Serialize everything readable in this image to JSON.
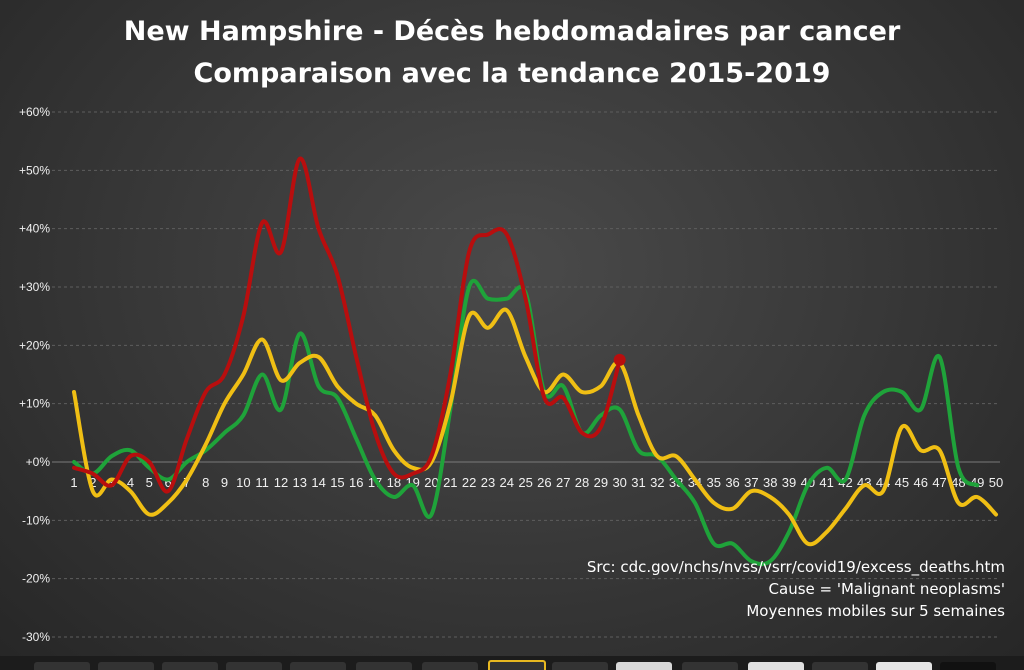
{
  "chart_data": {
    "type": "line",
    "title": "New Hampshire - Décès hebdomadaires par cancer",
    "subtitle": "Comparaison avec la tendance 2015-2019",
    "xlabel": "",
    "ylabel": "",
    "ylim": [
      -30,
      60
    ],
    "ytick_values": [
      -30,
      -20,
      -10,
      0,
      10,
      20,
      30,
      40,
      50,
      60
    ],
    "ytick_labels": [
      "-30%",
      "-20%",
      "-10%",
      "+0%",
      "+10%",
      "+20%",
      "+30%",
      "+40%",
      "+50%",
      "+60%"
    ],
    "x": [
      1,
      2,
      3,
      4,
      5,
      6,
      7,
      8,
      9,
      10,
      11,
      12,
      13,
      14,
      15,
      16,
      17,
      18,
      19,
      20,
      21,
      22,
      23,
      24,
      25,
      26,
      27,
      28,
      29,
      30,
      31,
      32,
      33,
      34,
      35,
      36,
      37,
      38,
      39,
      40,
      41,
      42,
      43,
      44,
      45,
      46,
      47,
      48,
      49,
      50
    ],
    "xtick_labels": [
      "1",
      "2",
      "3",
      "4",
      "5",
      "6",
      "7",
      "8",
      "9",
      "10",
      "11",
      "12",
      "13",
      "14",
      "15",
      "16",
      "17",
      "18",
      "19",
      "20",
      "21",
      "22",
      "23",
      "24",
      "25",
      "26",
      "27",
      "28",
      "29",
      "30",
      "31",
      "32",
      "33",
      "34",
      "35",
      "36",
      "37",
      "38",
      "39",
      "40",
      "41",
      "42",
      "43",
      "44",
      "45",
      "46",
      "47",
      "48",
      "49",
      "50"
    ],
    "grid": true,
    "legend": "none",
    "series": [
      {
        "color": "#1fa33a",
        "values": [
          0,
          -2,
          1,
          2,
          -1,
          -3,
          0,
          2,
          5,
          8,
          15,
          9,
          22,
          13,
          11,
          4,
          -3,
          -6,
          -4,
          -9,
          9,
          30,
          28,
          28,
          29,
          12,
          13,
          5,
          8,
          9,
          2,
          1,
          -3,
          -7,
          -14,
          -14,
          -17,
          -17,
          -12,
          -4,
          -1,
          -3,
          8,
          12,
          12,
          9,
          18,
          -1,
          -4,
          null
        ],
        "end_marker": false
      },
      {
        "color": "#f0bf14",
        "values": [
          12,
          -5,
          -3,
          -5,
          -9,
          -7,
          -3,
          3,
          10,
          15,
          21,
          14,
          17,
          18,
          13,
          10,
          8,
          2,
          -1,
          0,
          10,
          25,
          23,
          26,
          18,
          12,
          15,
          12,
          13,
          17,
          8,
          1,
          1,
          -3,
          -7,
          -8,
          -5,
          -6,
          -9,
          -14,
          -12,
          -8,
          -4,
          -5,
          6,
          2,
          2,
          -7,
          -6,
          -9
        ],
        "end_marker": false
      },
      {
        "color": "#b80e0e",
        "values": [
          -1,
          -2,
          -4,
          1,
          0,
          -5,
          4,
          12,
          15,
          25,
          41,
          36,
          52,
          40,
          32,
          18,
          5,
          -2,
          -2,
          1,
          15,
          36,
          39,
          39,
          28,
          11,
          11,
          5,
          6,
          17.5,
          null,
          null,
          null,
          null,
          null,
          null,
          null,
          null,
          null,
          null,
          null,
          null,
          null,
          null,
          null,
          null,
          null,
          null,
          null,
          null
        ],
        "end_marker": true
      }
    ],
    "annotations": [
      "Src: cdc.gov/nchs/nvss/vsrr/covid19/excess_deaths.htm",
      "Cause = 'Malignant neoplasms'",
      "Moyennes mobiles sur 5 semaines"
    ]
  }
}
